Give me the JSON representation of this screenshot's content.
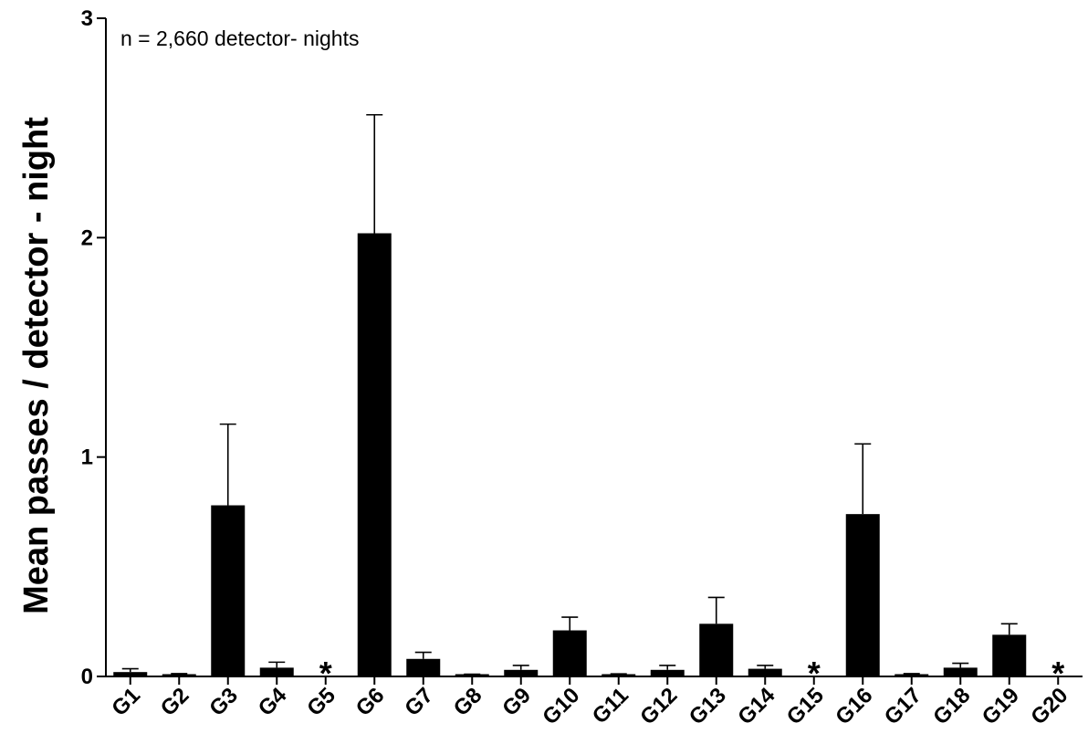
{
  "chart_data": {
    "type": "bar",
    "ylabel": "Mean passes / detector - night",
    "xlabel": "",
    "ylim": [
      0,
      3
    ],
    "yticks": [
      "0",
      "1",
      "2",
      "3"
    ],
    "annotation": "n = 2,660 detector- nights",
    "no_data_marker": "*",
    "categories": [
      "G1",
      "G2",
      "G3",
      "G4",
      "G5",
      "G6",
      "G7",
      "G8",
      "G9",
      "G10",
      "G11",
      "G12",
      "G13",
      "G14",
      "G15",
      "G16",
      "G17",
      "G18",
      "G19",
      "G20"
    ],
    "values": [
      0.02,
      0.005,
      0.78,
      0.04,
      null,
      2.02,
      0.08,
      0.005,
      0.03,
      0.21,
      0.005,
      0.03,
      0.24,
      0.035,
      null,
      0.74,
      0.005,
      0.04,
      0.19,
      null
    ],
    "errors": [
      0.015,
      0.008,
      0.37,
      0.025,
      null,
      0.54,
      0.03,
      0.005,
      0.02,
      0.06,
      0.007,
      0.02,
      0.12,
      0.015,
      null,
      0.32,
      0.008,
      0.02,
      0.05,
      null
    ],
    "bar_color": "#000000",
    "grid": false,
    "legend": "none"
  }
}
